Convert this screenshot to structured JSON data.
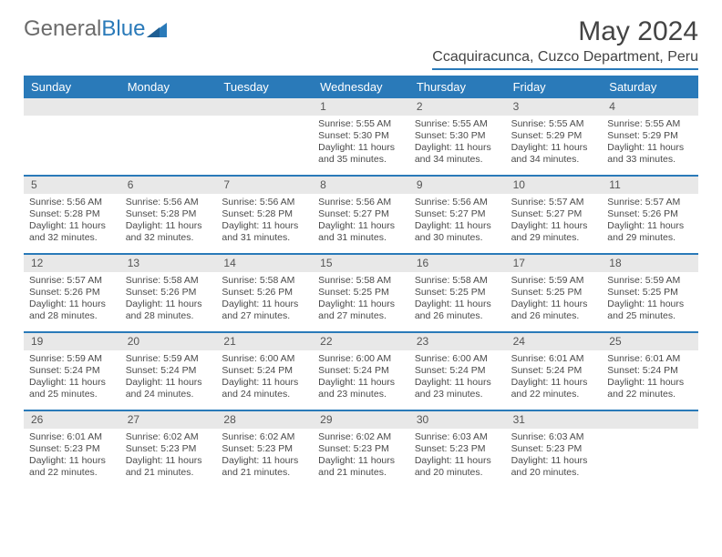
{
  "logo": {
    "text_gray": "General",
    "text_blue": "Blue"
  },
  "title": "May 2024",
  "location": "Ccaquiracunca, Cuzco Department, Peru",
  "colors": {
    "accent": "#2a7ab9",
    "header_text": "#ffffff",
    "daybar_bg": "#e8e8e8",
    "body_text": "#4a4a4a"
  },
  "days_of_week": [
    "Sunday",
    "Monday",
    "Tuesday",
    "Wednesday",
    "Thursday",
    "Friday",
    "Saturday"
  ],
  "weeks": [
    [
      {
        "n": "",
        "sunrise": "",
        "sunset": "",
        "dl1": "",
        "dl2": ""
      },
      {
        "n": "",
        "sunrise": "",
        "sunset": "",
        "dl1": "",
        "dl2": ""
      },
      {
        "n": "",
        "sunrise": "",
        "sunset": "",
        "dl1": "",
        "dl2": ""
      },
      {
        "n": "1",
        "sunrise": "Sunrise: 5:55 AM",
        "sunset": "Sunset: 5:30 PM",
        "dl1": "Daylight: 11 hours",
        "dl2": "and 35 minutes."
      },
      {
        "n": "2",
        "sunrise": "Sunrise: 5:55 AM",
        "sunset": "Sunset: 5:30 PM",
        "dl1": "Daylight: 11 hours",
        "dl2": "and 34 minutes."
      },
      {
        "n": "3",
        "sunrise": "Sunrise: 5:55 AM",
        "sunset": "Sunset: 5:29 PM",
        "dl1": "Daylight: 11 hours",
        "dl2": "and 34 minutes."
      },
      {
        "n": "4",
        "sunrise": "Sunrise: 5:55 AM",
        "sunset": "Sunset: 5:29 PM",
        "dl1": "Daylight: 11 hours",
        "dl2": "and 33 minutes."
      }
    ],
    [
      {
        "n": "5",
        "sunrise": "Sunrise: 5:56 AM",
        "sunset": "Sunset: 5:28 PM",
        "dl1": "Daylight: 11 hours",
        "dl2": "and 32 minutes."
      },
      {
        "n": "6",
        "sunrise": "Sunrise: 5:56 AM",
        "sunset": "Sunset: 5:28 PM",
        "dl1": "Daylight: 11 hours",
        "dl2": "and 32 minutes."
      },
      {
        "n": "7",
        "sunrise": "Sunrise: 5:56 AM",
        "sunset": "Sunset: 5:28 PM",
        "dl1": "Daylight: 11 hours",
        "dl2": "and 31 minutes."
      },
      {
        "n": "8",
        "sunrise": "Sunrise: 5:56 AM",
        "sunset": "Sunset: 5:27 PM",
        "dl1": "Daylight: 11 hours",
        "dl2": "and 31 minutes."
      },
      {
        "n": "9",
        "sunrise": "Sunrise: 5:56 AM",
        "sunset": "Sunset: 5:27 PM",
        "dl1": "Daylight: 11 hours",
        "dl2": "and 30 minutes."
      },
      {
        "n": "10",
        "sunrise": "Sunrise: 5:57 AM",
        "sunset": "Sunset: 5:27 PM",
        "dl1": "Daylight: 11 hours",
        "dl2": "and 29 minutes."
      },
      {
        "n": "11",
        "sunrise": "Sunrise: 5:57 AM",
        "sunset": "Sunset: 5:26 PM",
        "dl1": "Daylight: 11 hours",
        "dl2": "and 29 minutes."
      }
    ],
    [
      {
        "n": "12",
        "sunrise": "Sunrise: 5:57 AM",
        "sunset": "Sunset: 5:26 PM",
        "dl1": "Daylight: 11 hours",
        "dl2": "and 28 minutes."
      },
      {
        "n": "13",
        "sunrise": "Sunrise: 5:58 AM",
        "sunset": "Sunset: 5:26 PM",
        "dl1": "Daylight: 11 hours",
        "dl2": "and 28 minutes."
      },
      {
        "n": "14",
        "sunrise": "Sunrise: 5:58 AM",
        "sunset": "Sunset: 5:26 PM",
        "dl1": "Daylight: 11 hours",
        "dl2": "and 27 minutes."
      },
      {
        "n": "15",
        "sunrise": "Sunrise: 5:58 AM",
        "sunset": "Sunset: 5:25 PM",
        "dl1": "Daylight: 11 hours",
        "dl2": "and 27 minutes."
      },
      {
        "n": "16",
        "sunrise": "Sunrise: 5:58 AM",
        "sunset": "Sunset: 5:25 PM",
        "dl1": "Daylight: 11 hours",
        "dl2": "and 26 minutes."
      },
      {
        "n": "17",
        "sunrise": "Sunrise: 5:59 AM",
        "sunset": "Sunset: 5:25 PM",
        "dl1": "Daylight: 11 hours",
        "dl2": "and 26 minutes."
      },
      {
        "n": "18",
        "sunrise": "Sunrise: 5:59 AM",
        "sunset": "Sunset: 5:25 PM",
        "dl1": "Daylight: 11 hours",
        "dl2": "and 25 minutes."
      }
    ],
    [
      {
        "n": "19",
        "sunrise": "Sunrise: 5:59 AM",
        "sunset": "Sunset: 5:24 PM",
        "dl1": "Daylight: 11 hours",
        "dl2": "and 25 minutes."
      },
      {
        "n": "20",
        "sunrise": "Sunrise: 5:59 AM",
        "sunset": "Sunset: 5:24 PM",
        "dl1": "Daylight: 11 hours",
        "dl2": "and 24 minutes."
      },
      {
        "n": "21",
        "sunrise": "Sunrise: 6:00 AM",
        "sunset": "Sunset: 5:24 PM",
        "dl1": "Daylight: 11 hours",
        "dl2": "and 24 minutes."
      },
      {
        "n": "22",
        "sunrise": "Sunrise: 6:00 AM",
        "sunset": "Sunset: 5:24 PM",
        "dl1": "Daylight: 11 hours",
        "dl2": "and 23 minutes."
      },
      {
        "n": "23",
        "sunrise": "Sunrise: 6:00 AM",
        "sunset": "Sunset: 5:24 PM",
        "dl1": "Daylight: 11 hours",
        "dl2": "and 23 minutes."
      },
      {
        "n": "24",
        "sunrise": "Sunrise: 6:01 AM",
        "sunset": "Sunset: 5:24 PM",
        "dl1": "Daylight: 11 hours",
        "dl2": "and 22 minutes."
      },
      {
        "n": "25",
        "sunrise": "Sunrise: 6:01 AM",
        "sunset": "Sunset: 5:24 PM",
        "dl1": "Daylight: 11 hours",
        "dl2": "and 22 minutes."
      }
    ],
    [
      {
        "n": "26",
        "sunrise": "Sunrise: 6:01 AM",
        "sunset": "Sunset: 5:23 PM",
        "dl1": "Daylight: 11 hours",
        "dl2": "and 22 minutes."
      },
      {
        "n": "27",
        "sunrise": "Sunrise: 6:02 AM",
        "sunset": "Sunset: 5:23 PM",
        "dl1": "Daylight: 11 hours",
        "dl2": "and 21 minutes."
      },
      {
        "n": "28",
        "sunrise": "Sunrise: 6:02 AM",
        "sunset": "Sunset: 5:23 PM",
        "dl1": "Daylight: 11 hours",
        "dl2": "and 21 minutes."
      },
      {
        "n": "29",
        "sunrise": "Sunrise: 6:02 AM",
        "sunset": "Sunset: 5:23 PM",
        "dl1": "Daylight: 11 hours",
        "dl2": "and 21 minutes."
      },
      {
        "n": "30",
        "sunrise": "Sunrise: 6:03 AM",
        "sunset": "Sunset: 5:23 PM",
        "dl1": "Daylight: 11 hours",
        "dl2": "and 20 minutes."
      },
      {
        "n": "31",
        "sunrise": "Sunrise: 6:03 AM",
        "sunset": "Sunset: 5:23 PM",
        "dl1": "Daylight: 11 hours",
        "dl2": "and 20 minutes."
      },
      {
        "n": "",
        "sunrise": "",
        "sunset": "",
        "dl1": "",
        "dl2": ""
      }
    ]
  ]
}
